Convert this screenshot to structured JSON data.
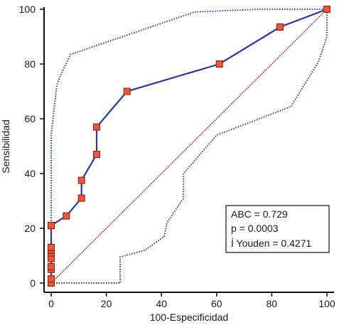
{
  "chart_data": {
    "type": "line",
    "xlabel": "100-Especificidad",
    "ylabel": "Sensibilidad",
    "xlim": [
      0,
      100
    ],
    "ylim": [
      0,
      100
    ],
    "x_ticks": [
      0,
      20,
      40,
      60,
      80,
      100
    ],
    "y_ticks": [
      0,
      20,
      40,
      60,
      80,
      100
    ],
    "grid": false,
    "series": [
      {
        "role": "roc-curve",
        "x": [
          0,
          0,
          0,
          0,
          0,
          0,
          0,
          0,
          0,
          0,
          0,
          5.5,
          11,
          11,
          16.5,
          16.5,
          27.5,
          61,
          83,
          100
        ],
        "y": [
          0,
          1.5,
          5,
          6,
          9,
          11,
          12,
          13,
          21,
          21,
          21,
          24.5,
          31,
          37.5,
          47,
          57,
          70,
          80,
          93.5,
          100
        ],
        "color": "#2b3a8f",
        "marker_color": "#f0553a"
      },
      {
        "role": "ci-upper-band",
        "x": [
          0,
          0,
          2,
          3,
          7,
          52,
          75,
          100
        ],
        "y": [
          0,
          54,
          72,
          75,
          83.5,
          99,
          100,
          100
        ],
        "color": "#2b3aa8"
      },
      {
        "role": "ci-lower-band",
        "x": [
          0,
          25,
          25,
          34,
          41,
          42,
          48,
          48,
          60,
          87,
          97,
          100,
          100
        ],
        "y": [
          0,
          0,
          9.5,
          12,
          17,
          22,
          31,
          40,
          54,
          64.5,
          81,
          90,
          100
        ],
        "color": "#2b3aa8"
      },
      {
        "role": "reference-diagonal",
        "x": [
          0,
          100
        ],
        "y": [
          0,
          100
        ],
        "color": "#8b1a1a"
      }
    ],
    "stats": {
      "line1": "ABC = 0.729",
      "line2": "p = 0.0003",
      "line3": "Í Youden = 0.4271"
    }
  }
}
